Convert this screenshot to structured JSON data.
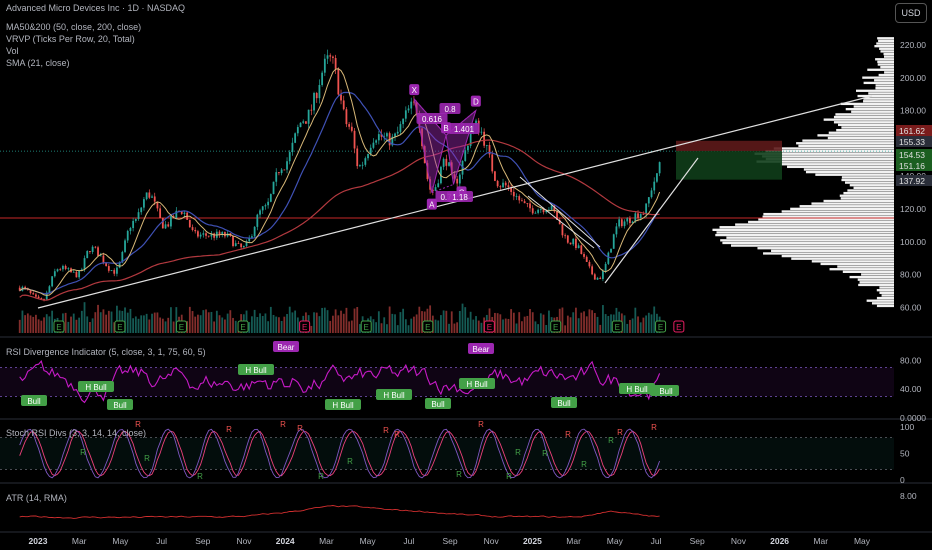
{
  "header": {
    "symbol_title": "Advanced Micro Devices Inc · 1D · NASDAQ",
    "currency_button": "USD"
  },
  "indicators": {
    "ma": "MA50&200 (50, close, 200, close)",
    "vrvp": "VRVP (Ticks Per Row, 20, Total)",
    "vol": "Vol",
    "sma": "SMA (21, close)",
    "rsi_div": "RSI Divergence Indicator (5, close, 3, 1, 75, 60, 5)",
    "stoch": "Stoch RSI Divs (3, 3, 14, 14, close)",
    "atr": "ATR (14, RMA)"
  },
  "colors": {
    "up": "#26a69a",
    "down": "#ef5350",
    "ma_red": "#b2393f",
    "ma_blue": "#3f51b5",
    "sma_gold": "#d8b878",
    "rsi": "#c71bc7",
    "pattern": "#9c27b0",
    "bull": "#43a047",
    "stoch_k": "#7e57c2",
    "stoch_d": "#ec407a"
  },
  "price_axis": {
    "ticks": [
      220,
      200,
      180,
      160,
      140,
      120,
      100,
      80,
      60
    ],
    "tick_labels": [
      "220.00",
      "200.00",
      "180.00",
      "160.00",
      "140.00",
      "120.00",
      "100.00",
      "80.00",
      "60.00"
    ],
    "badges": [
      {
        "value": 161.62,
        "label": "161.62",
        "color": "#7a1c1c"
      },
      {
        "value": 155.33,
        "label": "155.33",
        "color": "#2a2e39"
      },
      {
        "value": 154.53,
        "label": "154.53",
        "color": "#1b5e20"
      },
      {
        "value": 151.16,
        "label": "151.16",
        "color": "#1b5e20"
      },
      {
        "value": 137.92,
        "label": "137.92",
        "color": "#2a2e39"
      }
    ]
  },
  "rsi_axis": {
    "ticks": [
      "80.00",
      "40.00",
      "0.0000"
    ]
  },
  "stoch_axis": {
    "ticks": [
      "100",
      "50",
      "0"
    ]
  },
  "atr_axis": {
    "ticks": [
      "8.00"
    ]
  },
  "time_axis": [
    "2023",
    "Mar",
    "May",
    "Jul",
    "Sep",
    "Nov",
    "2024",
    "Mar",
    "May",
    "Jul",
    "Sep",
    "Nov",
    "2025",
    "Mar",
    "May",
    "Jul",
    "Sep",
    "Nov",
    "2026",
    "Mar",
    "May"
  ],
  "pattern": {
    "points": [
      {
        "label": "X",
        "date": "2024-07-10",
        "value": 187
      },
      {
        "label": "A",
        "date": "2024-08-05",
        "value": 130
      },
      {
        "label": "B",
        "date": "2024-08-26",
        "value": 165
      },
      {
        "label": "C",
        "date": "2024-09-06",
        "value": 135
      },
      {
        "label": "D",
        "date": "2024-10-09",
        "value": 180
      }
    ],
    "ratios": [
      {
        "label": "0.616"
      },
      {
        "label": "0.8"
      },
      {
        "label": "1.401"
      },
      {
        "label": "0.7"
      },
      {
        "label": "1.18"
      }
    ]
  },
  "rsi_signals": [
    {
      "label": "Bull"
    },
    {
      "label": "H Bull"
    },
    {
      "label": "Bull"
    },
    {
      "label": "H Bull"
    },
    {
      "label": "Bear"
    },
    {
      "label": "H Bull"
    },
    {
      "label": "H Bull"
    },
    {
      "label": "Bull"
    },
    {
      "label": "Bear"
    },
    {
      "label": "H Bull"
    },
    {
      "label": "Bull"
    },
    {
      "label": "H Bull"
    },
    {
      "label": "Bull"
    },
    {
      "label": "Bull"
    }
  ],
  "stoch_signals": {
    "bull": "R",
    "bear": "R"
  },
  "earnings_marker": "E"
}
